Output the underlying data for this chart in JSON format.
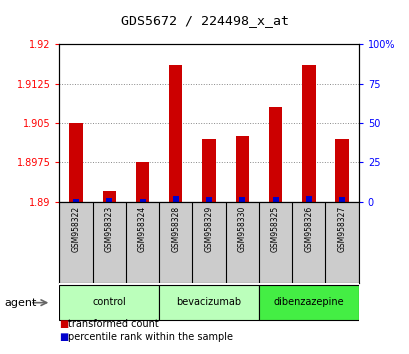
{
  "title": "GDS5672 / 224498_x_at",
  "samples": [
    "GSM958322",
    "GSM958323",
    "GSM958324",
    "GSM958328",
    "GSM958329",
    "GSM958330",
    "GSM958325",
    "GSM958326",
    "GSM958327"
  ],
  "transformed_count": [
    1.905,
    1.892,
    1.8975,
    1.916,
    1.902,
    1.9025,
    1.908,
    1.916,
    1.902
  ],
  "percentile_rank": [
    2.0,
    2.5,
    1.5,
    3.5,
    3.0,
    3.0,
    3.0,
    3.5,
    3.0
  ],
  "y_min": 1.89,
  "y_max": 1.92,
  "y_ticks": [
    1.89,
    1.8975,
    1.905,
    1.9125,
    1.92
  ],
  "y_tick_labels": [
    "1.89",
    "1.8975",
    "1.905",
    "1.9125",
    "1.92"
  ],
  "right_y_ticks": [
    0,
    25,
    50,
    75,
    100
  ],
  "right_y_labels": [
    "0",
    "25",
    "50",
    "75",
    "100%"
  ],
  "groups": [
    {
      "label": "control",
      "indices": [
        0,
        1,
        2
      ],
      "color": "#bbffbb"
    },
    {
      "label": "bevacizumab",
      "indices": [
        3,
        4,
        5
      ],
      "color": "#bbffbb"
    },
    {
      "label": "dibenzazepine",
      "indices": [
        6,
        7,
        8
      ],
      "color": "#44ee44"
    }
  ],
  "bar_color_red": "#cc0000",
  "bar_color_blue": "#0000cc",
  "grid_color": "#888888",
  "bg_color": "#ffffff",
  "tick_bg": "#cccccc",
  "agent_label": "agent",
  "legend_red": "transformed count",
  "legend_blue": "percentile rank within the sample"
}
